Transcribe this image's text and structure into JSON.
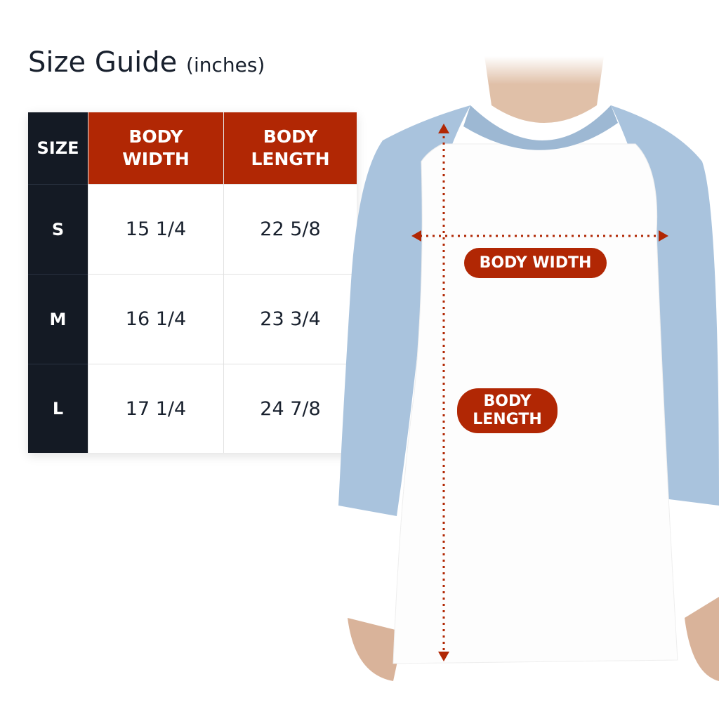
{
  "title": "Size Guide",
  "unit": "(inches)",
  "colors": {
    "header_dark": "#141a24",
    "header_accent": "#b12704",
    "sleeve": "#a9c3dd"
  },
  "table": {
    "headers": [
      "SIZE",
      "BODY\nWIDTH",
      "BODY\nLENGTH"
    ],
    "rows": [
      {
        "size": "S",
        "width": "15 1/4",
        "length": "22 5/8"
      },
      {
        "size": "M",
        "width": "16 1/4",
        "length": "23 3/4"
      },
      {
        "size": "L",
        "width": "17 1/4",
        "length": "24 7/8"
      }
    ]
  },
  "labels": {
    "width_l1": "BODY WIDTH",
    "length_l1": "BODY",
    "length_l2": "LENGTH"
  }
}
